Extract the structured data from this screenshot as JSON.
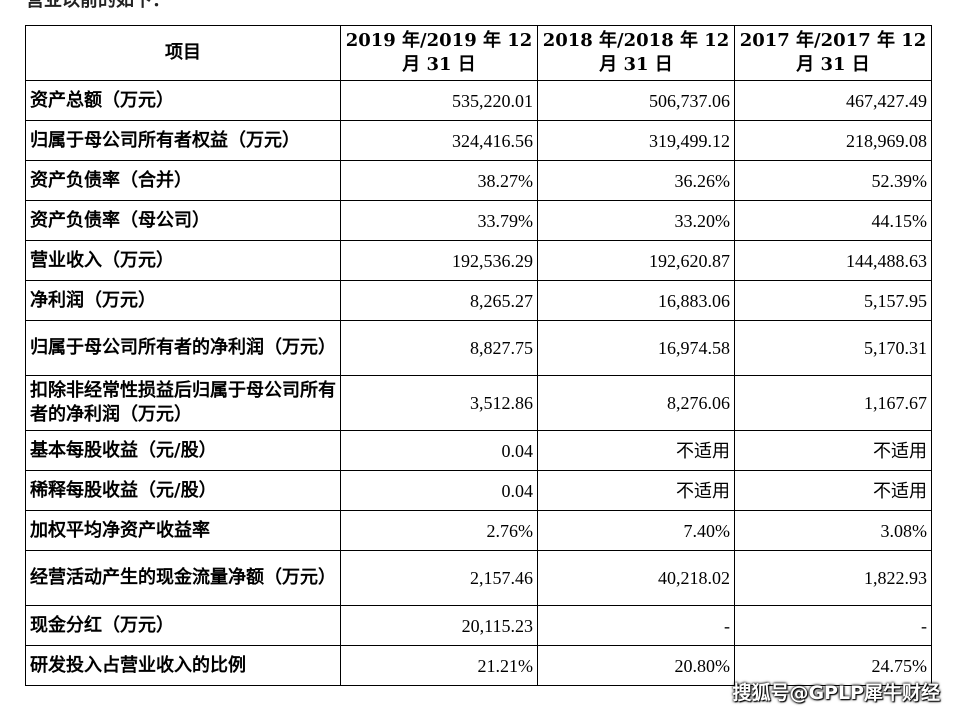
{
  "header_fragment": "营业以前的如下：",
  "table": {
    "headers": [
      "项目",
      "2019 年/2019 年 12 月 31 日",
      "2018 年/2018 年 12 月 31 日",
      "2017 年/2017 年 12 月 31 日"
    ],
    "rows": [
      {
        "label": "资产总额（万元）",
        "values": [
          "535,220.01",
          "506,737.06",
          "467,427.49"
        ]
      },
      {
        "label": "归属于母公司所有者权益（万元）",
        "values": [
          "324,416.56",
          "319,499.12",
          "218,969.08"
        ]
      },
      {
        "label": "资产负债率（合并）",
        "values": [
          "38.27%",
          "36.26%",
          "52.39%"
        ]
      },
      {
        "label": "资产负债率（母公司）",
        "values": [
          "33.79%",
          "33.20%",
          "44.15%"
        ]
      },
      {
        "label": "营业收入（万元）",
        "values": [
          "192,536.29",
          "192,620.87",
          "144,488.63"
        ]
      },
      {
        "label": "净利润（万元）",
        "values": [
          "8,265.27",
          "16,883.06",
          "5,157.95"
        ]
      },
      {
        "label": "归属于母公司所有者的净利润（万元）",
        "values": [
          "8,827.75",
          "16,974.58",
          "5,170.31"
        ]
      },
      {
        "label": "扣除非经常性损益后归属于母公司所有者的净利润（万元）",
        "values": [
          "3,512.86",
          "8,276.06",
          "1,167.67"
        ]
      },
      {
        "label": "基本每股收益（元/股）",
        "values": [
          "0.04",
          "不适用",
          "不适用"
        ]
      },
      {
        "label": "稀释每股收益（元/股）",
        "values": [
          "0.04",
          "不适用",
          "不适用"
        ]
      },
      {
        "label": "加权平均净资产收益率",
        "values": [
          "2.76%",
          "7.40%",
          "3.08%"
        ]
      },
      {
        "label": "经营活动产生的现金流量净额（万元）",
        "values": [
          "2,157.46",
          "40,218.02",
          "1,822.93"
        ]
      },
      {
        "label": "现金分红（万元）",
        "values": [
          "20,115.23",
          "-",
          "-"
        ]
      },
      {
        "label": "研发投入占营业收入的比例",
        "values": [
          "21.21%",
          "20.80%",
          "24.75%"
        ]
      }
    ]
  },
  "watermark": "搜狐号@GPLP犀牛财经"
}
